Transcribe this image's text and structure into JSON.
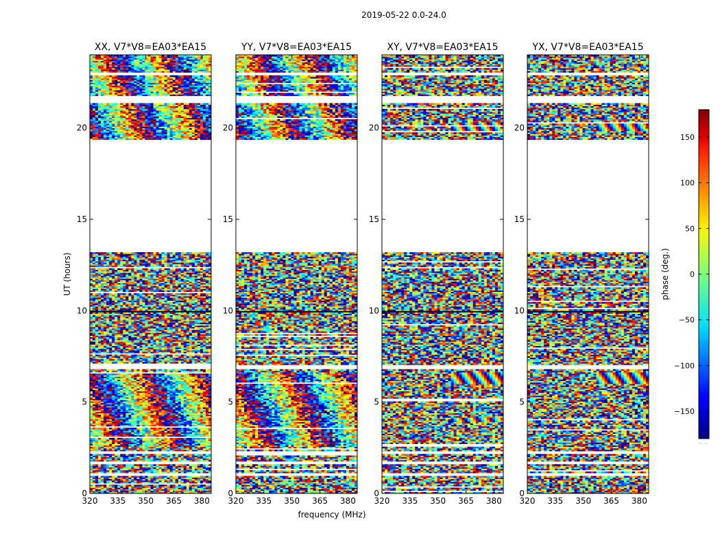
{
  "figure": {
    "suptitle": "2019-05-22 0.0-24.0",
    "xlabel": "frequency (MHz)",
    "ylabel": "UT (hours)",
    "colorbar_label": "phase (deg.)",
    "colorbar_footnote": "......"
  },
  "chart_data": {
    "type": "heatmap",
    "colormap": "jet",
    "colors": {
      "low": "#00007f",
      "high": "#7f0000",
      "mid": "#7fff7f"
    },
    "xlim": [
      320,
      385
    ],
    "ylim": [
      0,
      24
    ],
    "xticks": [
      320,
      335,
      350,
      365,
      380
    ],
    "yticks": [
      0,
      5,
      10,
      15,
      20
    ],
    "color_range": [
      -180,
      180
    ],
    "colorbar_ticks": [
      150,
      100,
      50,
      0,
      -50,
      -100,
      -150
    ],
    "colorbar_tick_labels": [
      "150",
      "100",
      "50",
      "0",
      "−50",
      "−100",
      "−150"
    ],
    "data_gap_hours": [
      13.2,
      19.3
    ],
    "panels": [
      {
        "title": "XX, V7*V8=EA03*EA15",
        "correlation": "XX"
      },
      {
        "title": "YY, V7*V8=EA03*EA15",
        "correlation": "YY"
      },
      {
        "title": "XY, V7*V8=EA03*EA15",
        "correlation": "XY"
      },
      {
        "title": "YX, V7*V8=EA03*EA15",
        "correlation": "YX"
      }
    ]
  }
}
